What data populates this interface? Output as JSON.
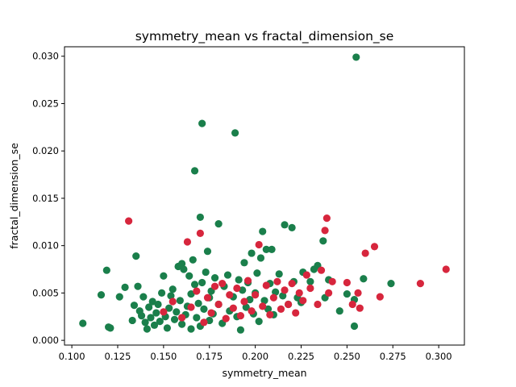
{
  "chart_data": {
    "type": "scatter",
    "title": "symmetry_mean vs fractal_dimension_se",
    "xlabel": "symmetry_mean",
    "ylabel": "fractal_dimension_se",
    "xlim": [
      0.096,
      0.314
    ],
    "ylim": [
      -0.0005,
      0.031
    ],
    "xticks": [
      0.1,
      0.125,
      0.15,
      0.175,
      0.2,
      0.225,
      0.25,
      0.275,
      0.3
    ],
    "xtick_labels": [
      "0.100",
      "0.125",
      "0.150",
      "0.175",
      "0.200",
      "0.225",
      "0.250",
      "0.275",
      "0.300"
    ],
    "yticks": [
      0.0,
      0.005,
      0.01,
      0.015,
      0.02,
      0.025,
      0.03
    ],
    "ytick_labels": [
      "0.000",
      "0.005",
      "0.010",
      "0.015",
      "0.020",
      "0.025",
      "0.030"
    ],
    "grid": false,
    "legend": "none",
    "colors": {
      "green": "#1a7f4b",
      "red": "#d7263d"
    },
    "series": [
      {
        "color": "#1a7f4b",
        "points": [
          [
            0.106,
            0.0018
          ],
          [
            0.116,
            0.0048
          ],
          [
            0.119,
            0.0074
          ],
          [
            0.12,
            0.0014
          ],
          [
            0.121,
            0.0013
          ],
          [
            0.126,
            0.0046
          ],
          [
            0.129,
            0.0056
          ],
          [
            0.133,
            0.0021
          ],
          [
            0.134,
            0.0037
          ],
          [
            0.135,
            0.0089
          ],
          [
            0.136,
            0.0057
          ],
          [
            0.137,
            0.0031
          ],
          [
            0.138,
            0.0026
          ],
          [
            0.139,
            0.0046
          ],
          [
            0.14,
            0.0019
          ],
          [
            0.141,
            0.0012
          ],
          [
            0.142,
            0.0035
          ],
          [
            0.143,
            0.0024
          ],
          [
            0.144,
            0.0041
          ],
          [
            0.145,
            0.0016
          ],
          [
            0.146,
            0.0029
          ],
          [
            0.147,
            0.0038
          ],
          [
            0.148,
            0.002
          ],
          [
            0.149,
            0.005
          ],
          [
            0.15,
            0.0068
          ],
          [
            0.151,
            0.0025
          ],
          [
            0.152,
            0.0013
          ],
          [
            0.153,
            0.0034
          ],
          [
            0.154,
            0.0047
          ],
          [
            0.155,
            0.0054
          ],
          [
            0.156,
            0.0022
          ],
          [
            0.157,
            0.003
          ],
          [
            0.158,
            0.0078
          ],
          [
            0.159,
            0.0042
          ],
          [
            0.16,
            0.0081
          ],
          [
            0.16,
            0.0017
          ],
          [
            0.161,
            0.0075
          ],
          [
            0.162,
            0.0027
          ],
          [
            0.163,
            0.0036
          ],
          [
            0.164,
            0.0068
          ],
          [
            0.165,
            0.0049
          ],
          [
            0.165,
            0.0012
          ],
          [
            0.166,
            0.0085
          ],
          [
            0.167,
            0.0179
          ],
          [
            0.167,
            0.0059
          ],
          [
            0.168,
            0.0024
          ],
          [
            0.169,
            0.0039
          ],
          [
            0.17,
            0.013
          ],
          [
            0.17,
            0.0015
          ],
          [
            0.171,
            0.0229
          ],
          [
            0.171,
            0.0061
          ],
          [
            0.172,
            0.0033
          ],
          [
            0.173,
            0.0072
          ],
          [
            0.174,
            0.0094
          ],
          [
            0.175,
            0.0045
          ],
          [
            0.175,
            0.0021
          ],
          [
            0.176,
            0.0052
          ],
          [
            0.177,
            0.0028
          ],
          [
            0.178,
            0.0066
          ],
          [
            0.18,
            0.0123
          ],
          [
            0.18,
            0.0038
          ],
          [
            0.182,
            0.0018
          ],
          [
            0.183,
            0.0057
          ],
          [
            0.185,
            0.0069
          ],
          [
            0.186,
            0.0031
          ],
          [
            0.188,
            0.0046
          ],
          [
            0.189,
            0.0219
          ],
          [
            0.19,
            0.0025
          ],
          [
            0.191,
            0.0064
          ],
          [
            0.192,
            0.0011
          ],
          [
            0.193,
            0.0053
          ],
          [
            0.194,
            0.0082
          ],
          [
            0.195,
            0.0035
          ],
          [
            0.196,
            0.0061
          ],
          [
            0.197,
            0.0043
          ],
          [
            0.198,
            0.0092
          ],
          [
            0.199,
            0.0028
          ],
          [
            0.2,
            0.005
          ],
          [
            0.201,
            0.0071
          ],
          [
            0.202,
            0.002
          ],
          [
            0.203,
            0.0087
          ],
          [
            0.204,
            0.0115
          ],
          [
            0.205,
            0.0042
          ],
          [
            0.206,
            0.0096
          ],
          [
            0.207,
            0.0033
          ],
          [
            0.208,
            0.006
          ],
          [
            0.209,
            0.0096
          ],
          [
            0.21,
            0.0027
          ],
          [
            0.211,
            0.0051
          ],
          [
            0.213,
            0.007
          ],
          [
            0.215,
            0.0047
          ],
          [
            0.216,
            0.0122
          ],
          [
            0.218,
            0.0038
          ],
          [
            0.22,
            0.0119
          ],
          [
            0.221,
            0.0062
          ],
          [
            0.223,
            0.0045
          ],
          [
            0.225,
            0.004
          ],
          [
            0.226,
            0.0072
          ],
          [
            0.23,
            0.0062
          ],
          [
            0.232,
            0.0075
          ],
          [
            0.234,
            0.0079
          ],
          [
            0.237,
            0.0105
          ],
          [
            0.238,
            0.0045
          ],
          [
            0.24,
            0.0064
          ],
          [
            0.246,
            0.0031
          ],
          [
            0.25,
            0.0049
          ],
          [
            0.254,
            0.0015
          ],
          [
            0.254,
            0.0043
          ],
          [
            0.255,
            0.0299
          ],
          [
            0.259,
            0.0065
          ],
          [
            0.274,
            0.006
          ]
        ]
      },
      {
        "color": "#d7263d",
        "points": [
          [
            0.131,
            0.0126
          ],
          [
            0.15,
            0.003
          ],
          [
            0.155,
            0.0041
          ],
          [
            0.16,
            0.0024
          ],
          [
            0.163,
            0.0104
          ],
          [
            0.165,
            0.0035
          ],
          [
            0.168,
            0.0052
          ],
          [
            0.17,
            0.0113
          ],
          [
            0.172,
            0.0019
          ],
          [
            0.174,
            0.0045
          ],
          [
            0.176,
            0.0029
          ],
          [
            0.178,
            0.0057
          ],
          [
            0.18,
            0.0038
          ],
          [
            0.182,
            0.006
          ],
          [
            0.184,
            0.0023
          ],
          [
            0.186,
            0.0048
          ],
          [
            0.188,
            0.0034
          ],
          [
            0.19,
            0.0055
          ],
          [
            0.192,
            0.0026
          ],
          [
            0.194,
            0.0041
          ],
          [
            0.196,
            0.0063
          ],
          [
            0.198,
            0.0031
          ],
          [
            0.2,
            0.0048
          ],
          [
            0.202,
            0.0101
          ],
          [
            0.204,
            0.0036
          ],
          [
            0.206,
            0.0058
          ],
          [
            0.208,
            0.0027
          ],
          [
            0.21,
            0.0045
          ],
          [
            0.212,
            0.0062
          ],
          [
            0.214,
            0.0033
          ],
          [
            0.216,
            0.0053
          ],
          [
            0.218,
            0.0038
          ],
          [
            0.22,
            0.006
          ],
          [
            0.222,
            0.0029
          ],
          [
            0.224,
            0.005
          ],
          [
            0.226,
            0.0042
          ],
          [
            0.228,
            0.0069
          ],
          [
            0.23,
            0.0055
          ],
          [
            0.234,
            0.0038
          ],
          [
            0.236,
            0.0074
          ],
          [
            0.238,
            0.0116
          ],
          [
            0.239,
            0.0129
          ],
          [
            0.24,
            0.005
          ],
          [
            0.242,
            0.0062
          ],
          [
            0.25,
            0.0061
          ],
          [
            0.253,
            0.0038
          ],
          [
            0.256,
            0.005
          ],
          [
            0.257,
            0.0034
          ],
          [
            0.26,
            0.0092
          ],
          [
            0.265,
            0.0099
          ],
          [
            0.268,
            0.0046
          ],
          [
            0.29,
            0.006
          ],
          [
            0.304,
            0.0075
          ]
        ]
      }
    ]
  }
}
